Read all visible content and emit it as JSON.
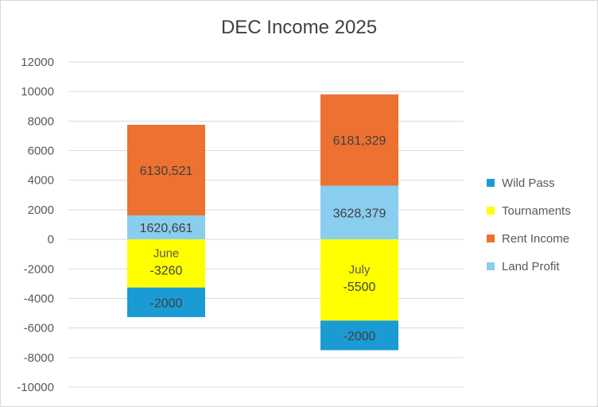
{
  "chart_data": {
    "type": "bar",
    "stacked": true,
    "title": "DEC Income 2025",
    "categories": [
      "June",
      "July"
    ],
    "ylim": [
      -10000,
      12000
    ],
    "ytick_step": 2000,
    "grid": true,
    "legend_position": "right",
    "series": [
      {
        "name": "Wild Pass",
        "color": "#1a9bd4",
        "values": [
          -2000,
          -2000
        ],
        "labels": [
          "-2000",
          "-2000"
        ]
      },
      {
        "name": "Tournaments",
        "color": "#ffff00",
        "values": [
          -3260,
          -5500
        ],
        "labels": [
          "-3260",
          "-5500"
        ]
      },
      {
        "name": "Rent Income",
        "color": "#ed7130",
        "values": [
          6130.521,
          6181.329
        ],
        "labels": [
          "6130,521",
          "6181,329"
        ]
      },
      {
        "name": "Land Profit",
        "color": "#89cdef",
        "values": [
          1620.661,
          3628.379
        ],
        "labels": [
          "1620,661",
          "3628,379"
        ]
      }
    ],
    "stack_order": [
      "Land Profit",
      "Rent Income",
      "Tournaments",
      "Wild Pass"
    ],
    "legend_order": [
      "Wild Pass",
      "Tournaments",
      "Rent Income",
      "Land Profit"
    ]
  },
  "colors": {
    "text": "#595959",
    "title": "#404040",
    "grid": "#d9d9d9"
  }
}
